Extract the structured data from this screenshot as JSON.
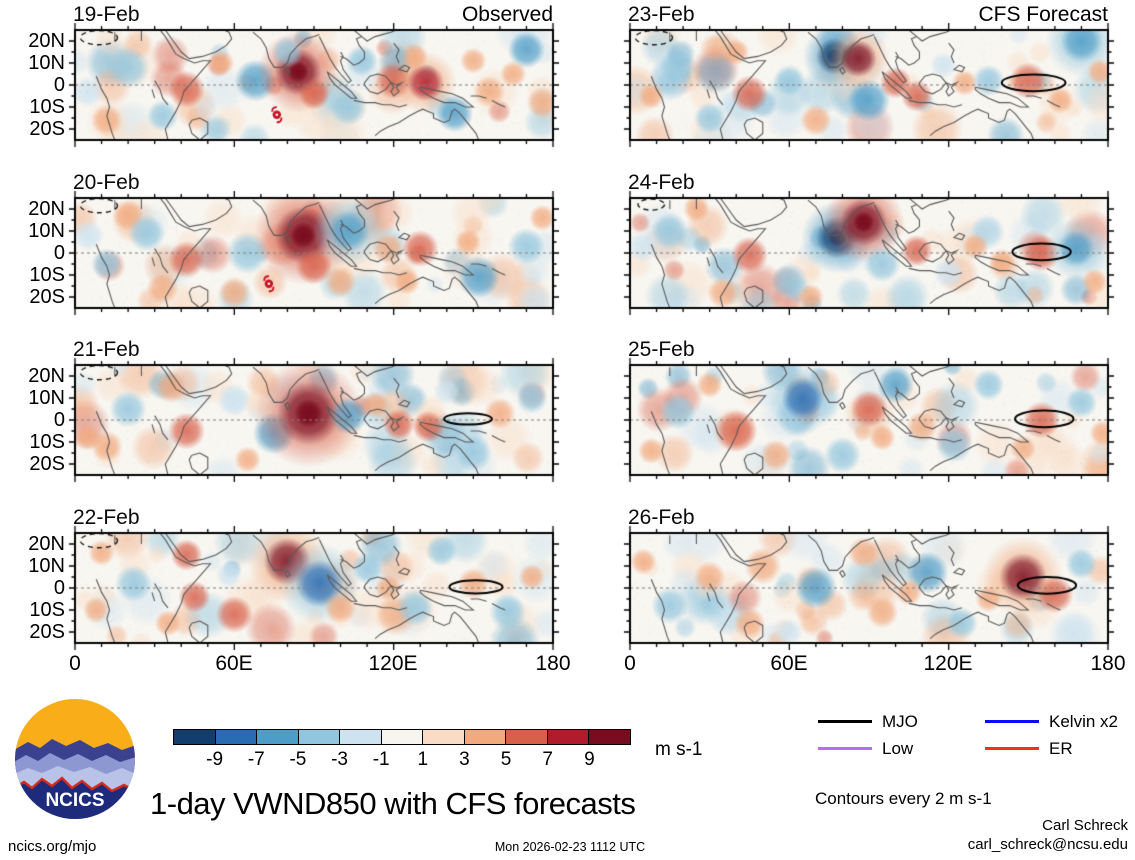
{
  "figure": {
    "title": "1-day VWND850 with CFS forecasts",
    "contour_note": "Contours every 2 m s-1",
    "credit_name": "Carl Schreck",
    "credit_email": "carl_schreck@ncsu.edu",
    "footer_left": "ncics.org/mjo",
    "footer_center": "Mon 2026-02-23 1112 UTC",
    "logo_text": "NCICS"
  },
  "legend": {
    "items": [
      {
        "label": "MJO",
        "color": "#000000"
      },
      {
        "label": "Kelvin x2",
        "color": "#0a0aff"
      },
      {
        "label": "Low",
        "color": "#b46ef4"
      },
      {
        "label": "ER",
        "color": "#f2301e"
      }
    ]
  },
  "chart_data": {
    "type": "heatmap",
    "description": "Eight lat-lon map panels of 850 hPa meridional wind anomalies (VWND850). Left column observed 19-22 Feb, right column CFS forecast 23-26 Feb. Domain 0-180E, 25S-25N. Shading every 2 m s-1; equatorial wave contours (MJO black, Kelvin blue, ER red, Low violet).",
    "columns": [
      "Observed",
      "CFS Forecast"
    ],
    "x_axis": {
      "labels": [
        "0",
        "60E",
        "120E",
        "180"
      ],
      "range_deg": [
        0,
        180
      ]
    },
    "y_axis": {
      "labels": [
        "20N",
        "10N",
        "0",
        "10S",
        "20S"
      ],
      "range_deg": [
        -25,
        25
      ]
    },
    "colorbar": {
      "levels": [
        -9,
        -7,
        -5,
        -3,
        -1,
        1,
        3,
        5,
        7,
        9
      ],
      "colors": [
        "#123e6d",
        "#2a6cb3",
        "#4e9dc8",
        "#92c6de",
        "#cee3f0",
        "#f7f5f0",
        "#fadcc4",
        "#f2a97d",
        "#d8604a",
        "#b11c2d",
        "#7a0c20"
      ],
      "units": "m s-1"
    },
    "panels": [
      {
        "date": "19-Feb",
        "kind": "observed",
        "anomalies": [
          [
            20,
            8,
            -4,
            8
          ],
          [
            5,
            -3,
            -3,
            6
          ],
          [
            42,
            -2,
            5,
            7
          ],
          [
            33,
            -14,
            -4,
            6
          ],
          [
            12,
            -16,
            4,
            6
          ],
          [
            55,
            10,
            3,
            5
          ],
          [
            68,
            2,
            -6,
            8
          ],
          [
            84,
            6,
            10,
            9
          ],
          [
            90,
            -4,
            5,
            6
          ],
          [
            80,
            15,
            -4,
            6
          ],
          [
            103,
            -10,
            -5,
            7
          ],
          [
            108,
            11,
            -5,
            6
          ],
          [
            120,
            2,
            6,
            7
          ],
          [
            132,
            1,
            7,
            7
          ],
          [
            128,
            13,
            3,
            5
          ],
          [
            143,
            -13,
            -6,
            7
          ],
          [
            156,
            -3,
            4,
            6
          ],
          [
            150,
            11,
            3,
            5
          ],
          [
            170,
            16,
            -6,
            7
          ],
          [
            176,
            -8,
            3,
            6
          ],
          [
            165,
            5,
            3,
            5
          ]
        ],
        "tc_symbol": [
          76,
          -13.5
        ],
        "dashed_ellipse": [
          9,
          21.5,
          7,
          3.2
        ],
        "mjo_ellipse": null
      },
      {
        "date": "20-Feb",
        "kind": "observed",
        "anomalies": [
          [
            20,
            17,
            3,
            6
          ],
          [
            27,
            9,
            -5,
            7
          ],
          [
            42,
            -3,
            6,
            7
          ],
          [
            33,
            -16,
            3,
            6
          ],
          [
            12,
            -5,
            -4,
            6
          ],
          [
            65,
            0,
            -5,
            8
          ],
          [
            86,
            8,
            10,
            11
          ],
          [
            90,
            -6,
            6,
            7
          ],
          [
            103,
            10,
            -7,
            8
          ],
          [
            100,
            -13,
            3,
            6
          ],
          [
            118,
            2,
            4,
            6
          ],
          [
            130,
            2,
            6,
            7
          ],
          [
            125,
            -13,
            3,
            5
          ],
          [
            152,
            -11,
            -6,
            8
          ],
          [
            148,
            5,
            3,
            5
          ],
          [
            170,
            3,
            -4,
            7
          ],
          [
            176,
            16,
            4,
            5
          ],
          [
            60,
            -18,
            4,
            6
          ],
          [
            5,
            8,
            -3,
            6
          ]
        ],
        "tc_symbol": [
          73,
          -14
        ],
        "dashed_ellipse": [
          9,
          21.5,
          7,
          3.2
        ],
        "mjo_ellipse": null
      },
      {
        "date": "21-Feb",
        "kind": "observed",
        "anomalies": [
          [
            20,
            5,
            -5,
            7
          ],
          [
            36,
            15,
            4,
            6
          ],
          [
            42,
            -5,
            6,
            7
          ],
          [
            12,
            -12,
            4,
            6
          ],
          [
            60,
            9,
            -3,
            6
          ],
          [
            75,
            -6,
            -6,
            8
          ],
          [
            88,
            3,
            11,
            12
          ],
          [
            103,
            2,
            -6,
            7
          ],
          [
            113,
            7,
            4,
            5
          ],
          [
            122,
            -2,
            5,
            6
          ],
          [
            133,
            -3,
            5,
            6
          ],
          [
            140,
            13,
            -3,
            5
          ],
          [
            150,
            -15,
            -5,
            7
          ],
          [
            160,
            3,
            3,
            6
          ],
          [
            172,
            10,
            -4,
            6
          ],
          [
            65,
            -18,
            3,
            5
          ],
          [
            5,
            -8,
            3,
            5
          ]
        ],
        "tc_symbol": null,
        "dashed_ellipse": [
          9,
          21.5,
          7,
          3.2
        ],
        "mjo_ellipse": [
          148,
          0.5,
          9,
          2.6
        ]
      },
      {
        "date": "22-Feb",
        "kind": "observed",
        "anomalies": [
          [
            22,
            2,
            -5,
            7
          ],
          [
            42,
            15,
            5,
            6
          ],
          [
            45,
            -4,
            5,
            6
          ],
          [
            35,
            -16,
            3,
            5
          ],
          [
            60,
            -12,
            5,
            7
          ],
          [
            58,
            6,
            -3,
            5
          ],
          [
            80,
            12,
            9,
            9
          ],
          [
            92,
            2,
            -9,
            9
          ],
          [
            100,
            -9,
            4,
            6
          ],
          [
            110,
            9,
            -4,
            6
          ],
          [
            118,
            0,
            4,
            5
          ],
          [
            128,
            -9,
            -5,
            7
          ],
          [
            138,
            17,
            -5,
            6
          ],
          [
            150,
            2,
            4,
            6
          ],
          [
            163,
            -11,
            -4,
            7
          ],
          [
            172,
            5,
            3,
            5
          ],
          [
            10,
            16,
            3,
            5
          ],
          [
            8,
            -10,
            3,
            5
          ]
        ],
        "tc_symbol": null,
        "dashed_ellipse": [
          9,
          21.5,
          7,
          3.2
        ],
        "mjo_ellipse": [
          151,
          0.5,
          10,
          3
        ]
      },
      {
        "date": "23-Feb",
        "kind": "forecast",
        "anomalies": [
          [
            18,
            8,
            -5,
            7
          ],
          [
            30,
            -15,
            -4,
            6
          ],
          [
            45,
            -4,
            6,
            7
          ],
          [
            40,
            15,
            3,
            5
          ],
          [
            60,
            2,
            -4,
            6
          ],
          [
            77,
            13,
            -10,
            7
          ],
          [
            86,
            12,
            9,
            7
          ],
          [
            90,
            -7,
            -6,
            8
          ],
          [
            100,
            1,
            5,
            6
          ],
          [
            108,
            -5,
            5,
            6
          ],
          [
            118,
            9,
            -3,
            5
          ],
          [
            126,
            1,
            4,
            5
          ],
          [
            135,
            2,
            -4,
            6
          ],
          [
            150,
            2,
            5,
            7
          ],
          [
            162,
            -7,
            3,
            5
          ],
          [
            170,
            20,
            -7,
            8
          ],
          [
            177,
            6,
            3,
            5
          ],
          [
            70,
            -16,
            3,
            6
          ],
          [
            8,
            -5,
            3,
            5
          ]
        ],
        "tc_symbol": null,
        "dashed_ellipse": [
          9,
          21.5,
          7,
          3.2
        ],
        "mjo_ellipse": [
          152,
          1,
          12,
          3.8
        ]
      },
      {
        "date": "24-Feb",
        "kind": "forecast",
        "anomalies": [
          [
            15,
            10,
            -4,
            7
          ],
          [
            35,
            -18,
            4,
            6
          ],
          [
            45,
            -1,
            6,
            7
          ],
          [
            60,
            -13,
            -5,
            7
          ],
          [
            78,
            7,
            -10,
            8
          ],
          [
            88,
            14,
            10,
            9
          ],
          [
            95,
            -5,
            -5,
            7
          ],
          [
            108,
            1,
            5,
            6
          ],
          [
            120,
            -9,
            -3,
            6
          ],
          [
            130,
            3,
            3,
            5
          ],
          [
            140,
            -4,
            3,
            5
          ],
          [
            155,
            0,
            5,
            7
          ],
          [
            168,
            2,
            -7,
            7
          ],
          [
            175,
            -13,
            3,
            5
          ],
          [
            25,
            20,
            3,
            5
          ],
          [
            68,
            -20,
            3,
            5
          ],
          [
            5,
            3,
            -3,
            6
          ]
        ],
        "tc_symbol": null,
        "dashed_ellipse": [
          8,
          22,
          5,
          2.5
        ],
        "mjo_ellipse": [
          155,
          0.5,
          11,
          3.8
        ]
      },
      {
        "date": "25-Feb",
        "kind": "forecast",
        "anomalies": [
          [
            18,
            4,
            -4,
            7
          ],
          [
            40,
            -5,
            6,
            8
          ],
          [
            30,
            16,
            3,
            5
          ],
          [
            55,
            -16,
            3,
            6
          ],
          [
            65,
            10,
            -9,
            8
          ],
          [
            80,
            -16,
            -4,
            7
          ],
          [
            90,
            5,
            6,
            7
          ],
          [
            100,
            16,
            -6,
            7
          ],
          [
            110,
            -3,
            4,
            6
          ],
          [
            122,
            -11,
            -4,
            7
          ],
          [
            135,
            16,
            -4,
            6
          ],
          [
            148,
            -13,
            3,
            5
          ],
          [
            155,
            0,
            5,
            7
          ],
          [
            170,
            8,
            -4,
            6
          ],
          [
            178,
            -6,
            3,
            5
          ],
          [
            95,
            -8,
            3,
            5
          ],
          [
            8,
            -14,
            3,
            5
          ]
        ],
        "tc_symbol": null,
        "dashed_ellipse": null,
        "mjo_ellipse": [
          156,
          0.5,
          11,
          3.8
        ]
      },
      {
        "date": "26-Feb",
        "kind": "forecast",
        "anomalies": [
          [
            15,
            -8,
            -4,
            7
          ],
          [
            30,
            5,
            3,
            6
          ],
          [
            50,
            10,
            4,
            7
          ],
          [
            45,
            -16,
            4,
            6
          ],
          [
            70,
            0,
            -6,
            8
          ],
          [
            88,
            16,
            4,
            6
          ],
          [
            95,
            -11,
            4,
            6
          ],
          [
            112,
            7,
            -6,
            8
          ],
          [
            125,
            -16,
            -4,
            6
          ],
          [
            135,
            -5,
            3,
            5
          ],
          [
            148,
            5,
            9,
            9
          ],
          [
            160,
            -3,
            5,
            7
          ],
          [
            170,
            11,
            -4,
            6
          ],
          [
            60,
            -20,
            -3,
            5
          ],
          [
            105,
            -2,
            3,
            5
          ],
          [
            5,
            12,
            3,
            5
          ]
        ],
        "tc_symbol": null,
        "dashed_ellipse": null,
        "mjo_ellipse": [
          157,
          1.2,
          11,
          3.8
        ]
      }
    ]
  }
}
